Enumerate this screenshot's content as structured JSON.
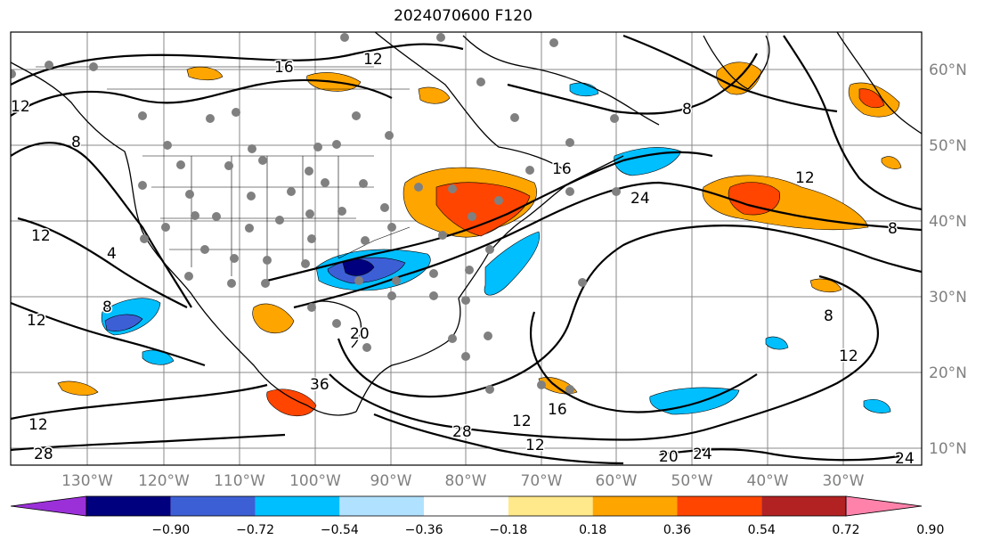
{
  "title": "2024070600 F120",
  "lon_labels": [
    "130°W",
    "120°W",
    "110°W",
    "100°W",
    "90°W",
    "80°W",
    "70°W",
    "60°W",
    "50°W",
    "40°W",
    "30°W"
  ],
  "lat_labels": [
    "60°N",
    "50°N",
    "40°N",
    "30°N",
    "20°N",
    "10°N"
  ],
  "contour_labels": [
    "16",
    "12",
    "12",
    "8",
    "12",
    "4",
    "8",
    "12",
    "12",
    "28",
    "8",
    "16",
    "24",
    "12",
    "8",
    "8",
    "12",
    "20",
    "36",
    "12",
    "28",
    "12",
    "16",
    "20",
    "24",
    "24"
  ],
  "colorbar": {
    "colors": [
      "#9b30d9",
      "#00007f",
      "#3d5fd6",
      "#00bfff",
      "#b0e2ff",
      "#ffffff",
      "#ffe98a",
      "#ffa500",
      "#ff4500",
      "#b22222",
      "#ff82ab"
    ],
    "ticks": [
      "−0.90",
      "−0.72",
      "−0.54",
      "−0.36",
      "−0.18",
      "0.18",
      "0.36",
      "0.54",
      "0.72",
      "0.90"
    ]
  }
}
